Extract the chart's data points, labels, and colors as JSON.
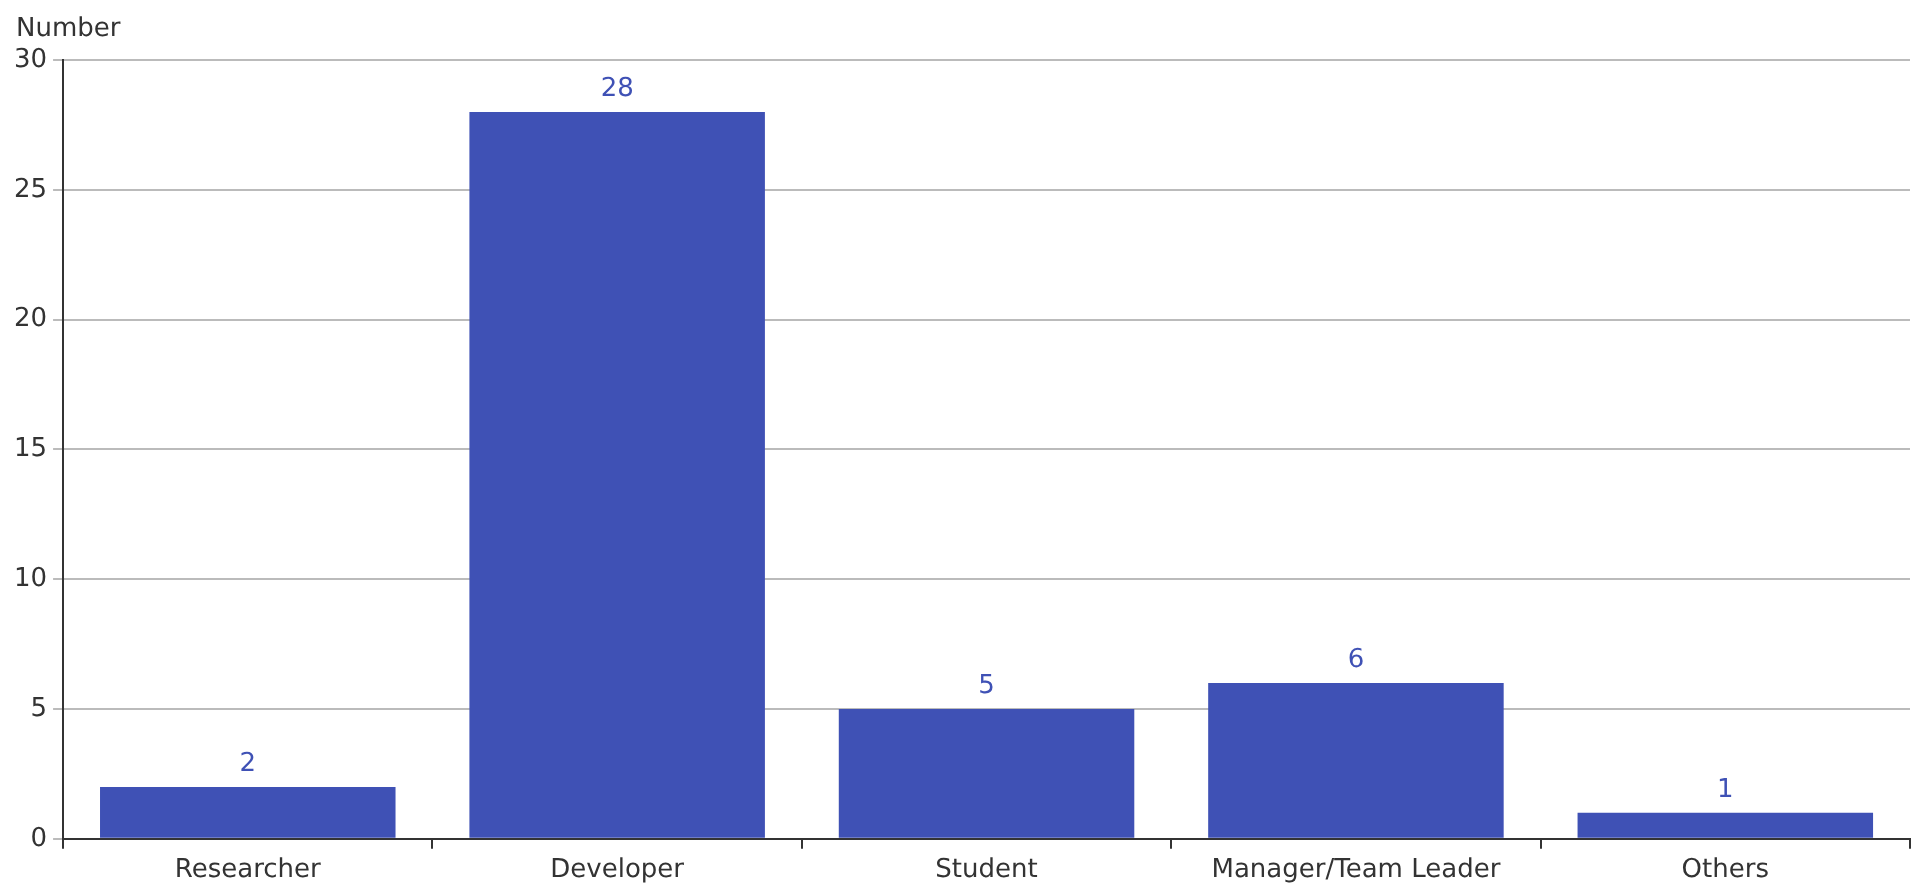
{
  "chart_data": {
    "type": "bar",
    "ylabel": "Number",
    "categories": [
      "Researcher",
      "Developer",
      "Student",
      "Manager/Team Leader",
      "Others"
    ],
    "values": [
      2,
      28,
      5,
      6,
      1
    ],
    "color": "#3f51b5",
    "ylim": [
      0,
      30
    ],
    "yticks": [
      0,
      5,
      10,
      15,
      20,
      25,
      30
    ],
    "grid": "y",
    "data_labels": true
  }
}
